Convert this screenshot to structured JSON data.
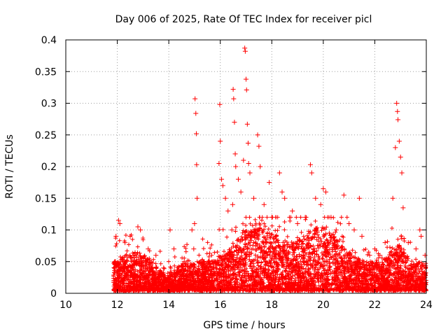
{
  "chart_data": {
    "type": "scatter",
    "title": "Day 006 of 2025, Rate Of TEC Index for receiver picl",
    "xlabel": "GPS time / hours",
    "ylabel": "ROTI / TECUs",
    "xlim": [
      10,
      24
    ],
    "ylim": [
      0,
      0.4
    ],
    "xticks": [
      10,
      12,
      14,
      16,
      18,
      20,
      22,
      24
    ],
    "xtick_labels": [
      "10",
      "12",
      "14",
      "16",
      "18",
      "20",
      "22",
      "24"
    ],
    "yticks": [
      0,
      0.05,
      0.1,
      0.15,
      0.2,
      0.25,
      0.3,
      0.35,
      0.4
    ],
    "ytick_labels": [
      "0",
      "0.05",
      "0.1",
      "0.15",
      "0.2",
      "0.25",
      "0.3",
      "0.35",
      "0.4"
    ],
    "grid": true,
    "marker": "+",
    "color": "#ff0000",
    "data_window_hours": [
      11.85,
      24.0
    ],
    "series": [
      {
        "name": "ROTI",
        "points": [
          [
            11.9,
            0.05
          ],
          [
            11.95,
            0.09
          ],
          [
            12.05,
            0.115
          ],
          [
            12.1,
            0.11
          ],
          [
            12.3,
            0.08
          ],
          [
            12.5,
            0.09
          ],
          [
            12.8,
            0.105
          ],
          [
            12.9,
            0.1
          ],
          [
            13.2,
            0.07
          ],
          [
            13.5,
            0.06
          ],
          [
            13.8,
            0.04
          ],
          [
            14.05,
            0.1
          ],
          [
            14.2,
            0.07
          ],
          [
            14.6,
            0.05
          ],
          [
            14.9,
            0.1
          ],
          [
            15.0,
            0.11
          ],
          [
            14.97,
            0.07
          ],
          [
            15.02,
            0.307
          ],
          [
            15.05,
            0.284
          ],
          [
            15.07,
            0.252
          ],
          [
            15.08,
            0.203
          ],
          [
            15.1,
            0.15
          ],
          [
            15.4,
            0.04
          ],
          [
            15.8,
            0.05
          ],
          [
            15.95,
            0.205
          ],
          [
            15.98,
            0.298
          ],
          [
            16.0,
            0.24
          ],
          [
            16.05,
            0.18
          ],
          [
            16.1,
            0.17
          ],
          [
            16.2,
            0.15
          ],
          [
            16.3,
            0.13
          ],
          [
            16.45,
            0.1
          ],
          [
            16.48,
            0.14
          ],
          [
            16.5,
            0.322
          ],
          [
            16.52,
            0.307
          ],
          [
            16.55,
            0.27
          ],
          [
            16.58,
            0.22
          ],
          [
            16.6,
            0.2
          ],
          [
            16.7,
            0.18
          ],
          [
            16.8,
            0.16
          ],
          [
            16.9,
            0.21
          ],
          [
            16.95,
            0.387
          ],
          [
            16.97,
            0.382
          ],
          [
            17.0,
            0.338
          ],
          [
            17.02,
            0.321
          ],
          [
            17.05,
            0.267
          ],
          [
            17.08,
            0.237
          ],
          [
            17.1,
            0.205
          ],
          [
            17.15,
            0.19
          ],
          [
            17.3,
            0.15
          ],
          [
            17.45,
            0.25
          ],
          [
            17.5,
            0.232
          ],
          [
            17.55,
            0.2
          ],
          [
            17.7,
            0.14
          ],
          [
            17.9,
            0.175
          ],
          [
            18.0,
            0.12
          ],
          [
            18.3,
            0.19
          ],
          [
            18.4,
            0.16
          ],
          [
            18.5,
            0.15
          ],
          [
            18.8,
            0.13
          ],
          [
            19.0,
            0.11
          ],
          [
            19.3,
            0.12
          ],
          [
            19.5,
            0.203
          ],
          [
            19.55,
            0.19
          ],
          [
            19.7,
            0.15
          ],
          [
            19.9,
            0.14
          ],
          [
            20.0,
            0.165
          ],
          [
            20.1,
            0.16
          ],
          [
            20.3,
            0.12
          ],
          [
            20.5,
            0.1
          ],
          [
            20.8,
            0.155
          ],
          [
            21.0,
            0.11
          ],
          [
            21.2,
            0.1
          ],
          [
            21.4,
            0.15
          ],
          [
            21.5,
            0.09
          ],
          [
            21.8,
            0.06
          ],
          [
            22.0,
            0.07
          ],
          [
            22.2,
            0.06
          ],
          [
            22.4,
            0.08
          ],
          [
            22.7,
            0.15
          ],
          [
            22.8,
            0.23
          ],
          [
            22.85,
            0.3
          ],
          [
            22.88,
            0.287
          ],
          [
            22.9,
            0.274
          ],
          [
            22.95,
            0.24
          ],
          [
            23.0,
            0.215
          ],
          [
            23.05,
            0.19
          ],
          [
            23.1,
            0.135
          ],
          [
            23.3,
            0.08
          ],
          [
            23.6,
            0.07
          ],
          [
            23.75,
            0.1
          ],
          [
            23.8,
            0.09
          ],
          [
            23.95,
            0.06
          ]
        ]
      }
    ]
  }
}
